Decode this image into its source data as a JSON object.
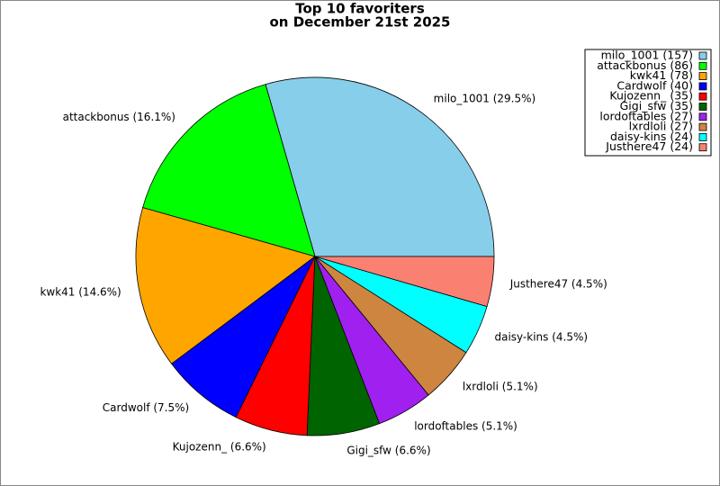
{
  "chart_data": {
    "type": "pie",
    "title": "Top 10 favoriters",
    "subtitle": "on December 21st 2025",
    "values": [
      157,
      86,
      78,
      40,
      35,
      35,
      27,
      27,
      24,
      24
    ],
    "value_labels": [
      "milo_1001 (29.5%)",
      "attackbonus (16.1%)",
      "kwk41 (14.6%)",
      "Cardwolf (7.5%)",
      "Kujozenn_ (6.6%)",
      "Gigi_sfw (6.6%)",
      "lordoftables (5.1%)",
      "lxrdloli (5.1%)",
      "daisy-kins (4.5%)",
      "Justhere47 (4.5%)"
    ],
    "legend_labels": [
      "milo_1001 (157)",
      "attackbonus (86)",
      "kwk41 (78)",
      "Cardwolf (40)",
      "Kujozenn_ (35)",
      "Gigi_sfw (35)",
      "lordoftables (27)",
      "lxrdloli (27)",
      "daisy-kins (24)",
      "Justhere47 (24)"
    ],
    "colors": [
      "#87ceeb",
      "#00ff00",
      "#ffa500",
      "#0000ff",
      "#ff0000",
      "#006400",
      "#a020f0",
      "#cd853f",
      "#00ffff",
      "#fa8072"
    ],
    "legend": "upper right"
  }
}
